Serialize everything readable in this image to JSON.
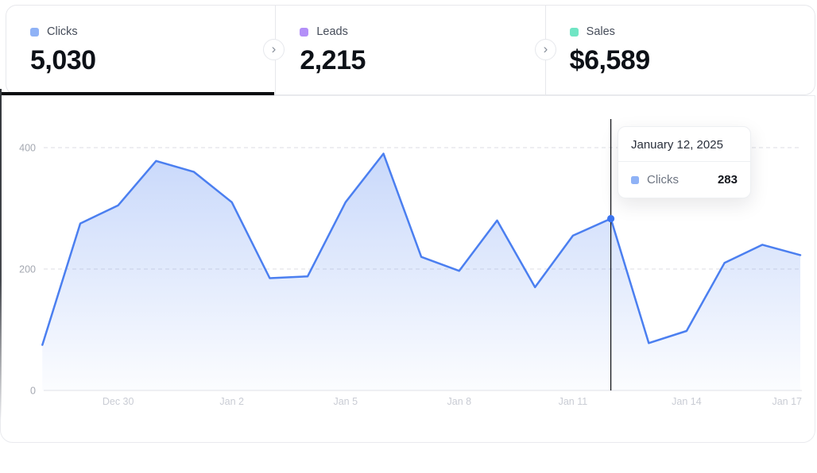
{
  "metric_tabs": [
    {
      "label": "Clicks",
      "value": "5,030",
      "marker_color": "#8fb2f6",
      "active": true
    },
    {
      "label": "Leads",
      "value": "2,215",
      "marker_color": "#b38ff8",
      "active": false
    },
    {
      "label": "Sales",
      "value": "$6,589",
      "marker_color": "#70e5c4",
      "active": false
    }
  ],
  "icons": {
    "chevron_right": "›"
  },
  "chart_data": {
    "type": "area",
    "x": [
      "Dec 28",
      "Dec 29",
      "Dec 30",
      "Dec 31",
      "Jan 1",
      "Jan 2",
      "Jan 3",
      "Jan 4",
      "Jan 5",
      "Jan 6",
      "Jan 7",
      "Jan 8",
      "Jan 9",
      "Jan 10",
      "Jan 11",
      "Jan 12",
      "Jan 13",
      "Jan 14",
      "Jan 15",
      "Jan 16",
      "Jan 17"
    ],
    "series": [
      {
        "name": "Clicks",
        "color": "#4b7ff0",
        "fill_top": "rgba(75,127,240,0.30)",
        "fill_bottom": "rgba(75,127,240,0.02)",
        "values": [
          75,
          275,
          305,
          378,
          360,
          310,
          185,
          188,
          310,
          390,
          220,
          197,
          280,
          170,
          255,
          283,
          78,
          98,
          210,
          240,
          223
        ]
      }
    ],
    "x_ticks": [
      "Dec 30",
      "Jan 2",
      "Jan 5",
      "Jan 8",
      "Jan 11",
      "Jan 14",
      "Jan 17"
    ],
    "y_ticks": [
      0,
      200,
      400
    ],
    "ylim": [
      0,
      450
    ],
    "xlabel": "",
    "ylabel": "",
    "grid": "horizontal-dashed",
    "legend_position": "none",
    "highlight": {
      "x": "Jan 12",
      "value": 283
    }
  },
  "tooltip": {
    "date": "January 12, 2025",
    "series": "Clicks",
    "value": "283",
    "marker_color": "#8fb2f6"
  }
}
